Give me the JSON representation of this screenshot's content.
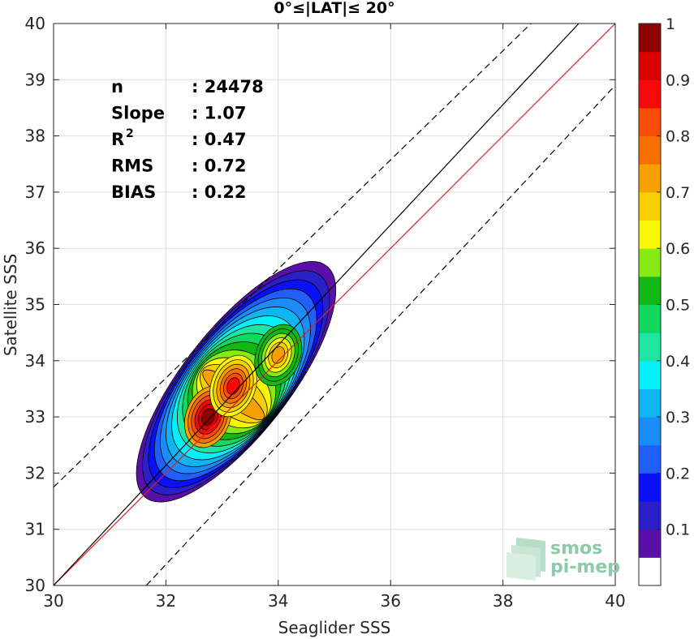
{
  "chart_data": {
    "type": "heatmap",
    "title": "0°≤|LAT|≤ 20°",
    "xlabel": "Seaglider SSS",
    "ylabel": "Satellite SSS",
    "xlim": [
      30,
      40
    ],
    "ylim": [
      30,
      40
    ],
    "xticks": [
      "30",
      "32",
      "34",
      "36",
      "38",
      "40"
    ],
    "yticks": [
      "30",
      "31",
      "32",
      "33",
      "34",
      "35",
      "36",
      "37",
      "38",
      "39",
      "40"
    ],
    "grid": true,
    "stats": [
      {
        "label": "n",
        "value": ": 24478"
      },
      {
        "label": "Slope",
        "value": ": 1.07"
      },
      {
        "label": "R",
        "sup": "2",
        "value": ": 0.47"
      },
      {
        "label": "RMS",
        "value": ": 0.72"
      },
      {
        "label": "BIAS",
        "value": ": 0.22"
      }
    ],
    "reference_lines": [
      {
        "kind": "one-to-one",
        "color": "#e02020",
        "style": "solid",
        "points": [
          [
            30,
            30
          ],
          [
            40,
            40
          ]
        ]
      },
      {
        "kind": "regression",
        "color": "#000000",
        "style": "solid",
        "points": [
          [
            30,
            30
          ],
          [
            39.35,
            40
          ]
        ]
      },
      {
        "kind": "upper-bound",
        "color": "#000000",
        "style": "dashed",
        "points": [
          [
            30,
            31.75
          ],
          [
            38.5,
            40
          ]
        ]
      },
      {
        "kind": "lower-bound",
        "color": "#000000",
        "style": "dashed",
        "points": [
          [
            31.65,
            30
          ],
          [
            40,
            38.9
          ]
        ]
      }
    ],
    "density": {
      "peaks": [
        {
          "x": 32.75,
          "y": 33.0,
          "value": 1.0
        },
        {
          "x": 33.2,
          "y": 33.55,
          "value": 0.9
        },
        {
          "x": 34.0,
          "y": 34.1,
          "value": 0.75
        }
      ],
      "outer_extent": {
        "x": [
          31.95,
          34.55
        ],
        "y": [
          31.5,
          35.75
        ]
      }
    },
    "colorbar": {
      "ticks": [
        "0.1",
        "0.2",
        "0.3",
        "0.4",
        "0.5",
        "0.6",
        "0.7",
        "0.8",
        "0.9",
        "1"
      ],
      "colors": [
        "#ffffff",
        "#5a0fa8",
        "#2a20c8",
        "#0a10f8",
        "#2060f8",
        "#1c8cf8",
        "#10b4f0",
        "#04f0f8",
        "#1ee6a0",
        "#12d860",
        "#14b814",
        "#88ea14",
        "#f8f800",
        "#f8d000",
        "#f8a000",
        "#f87000",
        "#f84c08",
        "#f80808",
        "#d80000",
        "#8c0000"
      ]
    }
  },
  "branding": {
    "logo_line1": "smos",
    "logo_line2": "pi-mep"
  }
}
